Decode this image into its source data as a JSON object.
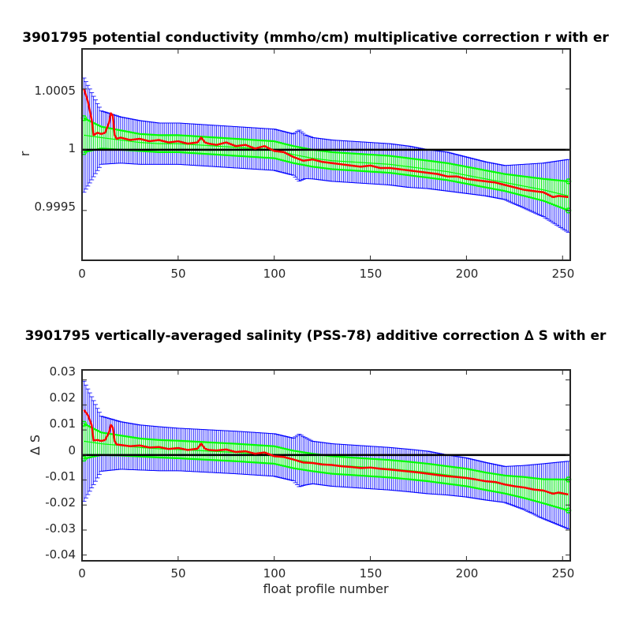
{
  "chart_data": [
    {
      "type": "line",
      "title": "3901795 potential conductivity (mmho/cm) multiplicative correction r with er",
      "xlabel": "",
      "ylabel": "r",
      "xlim": [
        0,
        254
      ],
      "ylim": [
        0.99909,
        1.00083
      ],
      "xticks": [
        0,
        50,
        100,
        150,
        200,
        250
      ],
      "xtick_labels": [
        "0",
        "50",
        "100",
        "150",
        "200",
        "250"
      ],
      "yticks": [
        0.9995,
        1,
        1.0005
      ],
      "ytick_labels": [
        "0.9995",
        "1",
        "1.0005"
      ],
      "reference_line": 1,
      "grid": false,
      "colors": {
        "fit": "#00ff00",
        "ci_outer": "#0000ff",
        "ci_inner": "#00ff00",
        "profile": "#ff0000",
        "reference": "#000000"
      },
      "series": [
        {
          "key": "fit",
          "x": [
            1,
            10,
            20,
            30,
            40,
            50,
            60,
            70,
            80,
            90,
            100,
            110,
            120,
            130,
            140,
            150,
            160,
            170,
            180,
            190,
            200,
            210,
            220,
            230,
            240,
            253
          ],
          "values": [
            1.00012,
            1.0001,
            1.00008,
            1.00006,
            1.00005,
            1.00005,
            1.00004,
            1.00003,
            1.00002,
            1.00001,
            1.0,
            0.99996,
            0.99993,
            0.99991,
            0.9999,
            0.99989,
            0.99988,
            0.99986,
            0.99984,
            0.99982,
            0.99979,
            0.99976,
            0.99973,
            0.9997,
            0.99967,
            0.99962
          ]
        },
        {
          "key": "fit_err",
          "x": [
            1,
            10,
            20,
            30,
            40,
            50,
            60,
            70,
            80,
            90,
            100,
            110,
            120,
            130,
            140,
            150,
            160,
            170,
            180,
            190,
            200,
            210,
            220,
            230,
            240,
            253
          ],
          "values": [
            0.00014,
            9e-05,
            8e-05,
            7e-05,
            7e-05,
            7e-05,
            7e-05,
            7e-05,
            7e-05,
            7e-05,
            7e-05,
            7e-05,
            7e-05,
            7e-05,
            7e-05,
            7e-05,
            7e-05,
            7e-05,
            7e-05,
            7e-05,
            7e-05,
            7e-05,
            7e-05,
            8e-05,
            9e-05,
            0.00012
          ]
        },
        {
          "key": "ci_err",
          "x": [
            1,
            10,
            20,
            30,
            40,
            50,
            60,
            70,
            80,
            90,
            100,
            110,
            113,
            116,
            120,
            130,
            140,
            150,
            160,
            170,
            180,
            190,
            200,
            210,
            220,
            230,
            240,
            253
          ],
          "values": [
            0.00047,
            0.00022,
            0.00019,
            0.00018,
            0.00017,
            0.00017,
            0.00017,
            0.00017,
            0.00017,
            0.00017,
            0.00017,
            0.00017,
            0.00021,
            0.00018,
            0.00017,
            0.00017,
            0.00017,
            0.00017,
            0.00017,
            0.00017,
            0.00016,
            0.00016,
            0.00015,
            0.00014,
            0.00014,
            0.00018,
            0.00022,
            0.0003
          ]
        },
        {
          "key": "profile",
          "x": [
            1,
            3,
            5,
            6,
            8,
            10,
            12,
            14,
            15,
            16,
            17,
            18,
            20,
            25,
            30,
            35,
            40,
            45,
            50,
            55,
            60,
            62,
            64,
            66,
            70,
            75,
            80,
            85,
            90,
            95,
            100,
            105,
            110,
            115,
            120,
            125,
            130,
            135,
            140,
            145,
            150,
            155,
            160,
            165,
            170,
            175,
            180,
            185,
            190,
            195,
            200,
            205,
            210,
            215,
            220,
            225,
            230,
            235,
            240,
            245,
            248,
            253
          ],
          "values": [
            1.0005,
            1.0004,
            1.00025,
            1.00012,
            1.00014,
            1.00013,
            1.00014,
            1.00022,
            1.0003,
            1.00028,
            1.00012,
            1.00009,
            1.0001,
            1.00008,
            1.00009,
            1.00007,
            1.00008,
            1.00006,
            1.00007,
            1.00005,
            1.00006,
            1.0001,
            1.00006,
            1.00005,
            1.00004,
            1.00006,
            1.00003,
            1.00004,
            1.00001,
            1.00003,
            0.99999,
            0.99998,
            0.99994,
            0.99991,
            0.99992,
            0.9999,
            0.99989,
            0.99988,
            0.99987,
            0.99986,
            0.99987,
            0.99985,
            0.99985,
            0.99984,
            0.99983,
            0.99982,
            0.99981,
            0.9998,
            0.99978,
            0.99978,
            0.99976,
            0.99975,
            0.99974,
            0.99973,
            0.99971,
            0.99969,
            0.99967,
            0.99966,
            0.99965,
            0.99961,
            0.99962,
            0.99961
          ]
        }
      ]
    },
    {
      "type": "line",
      "title": "3901795 vertically-averaged salinity (PSS-78) additive correction ∆ S with er",
      "xlabel": "float profile number",
      "ylabel": "∆ S",
      "xlim": [
        0,
        254
      ],
      "ylim": [
        -0.0423,
        0.034
      ],
      "xticks": [
        0,
        50,
        100,
        150,
        200,
        250
      ],
      "xtick_labels": [
        "0",
        "50",
        "100",
        "150",
        "200",
        "250"
      ],
      "yticks": [
        -0.04,
        -0.03,
        -0.02,
        -0.01,
        0,
        0.01,
        0.02,
        0.03
      ],
      "ytick_labels": [
        "-0.04",
        "-0.03",
        "-0.02",
        "-0.01",
        "0",
        "0.01",
        "0.02",
        "0.03"
      ],
      "reference_line": 0,
      "grid": false,
      "colors": {
        "fit": "#00ff00",
        "ci_outer": "#0000ff",
        "ci_inner": "#00ff00",
        "profile": "#ff0000",
        "reference": "#000000"
      },
      "series": [
        {
          "key": "fit",
          "x": [
            1,
            10,
            20,
            30,
            40,
            50,
            60,
            70,
            80,
            90,
            100,
            110,
            120,
            130,
            140,
            150,
            160,
            170,
            180,
            190,
            200,
            210,
            220,
            230,
            240,
            253
          ],
          "values": [
            0.0055,
            0.0045,
            0.0038,
            0.003,
            0.0025,
            0.0022,
            0.0018,
            0.0014,
            0.001,
            0.0005,
            0.0,
            -0.0018,
            -0.003,
            -0.004,
            -0.0045,
            -0.005,
            -0.0055,
            -0.0062,
            -0.007,
            -0.008,
            -0.009,
            -0.0105,
            -0.0118,
            -0.013,
            -0.0145,
            -0.016
          ]
        },
        {
          "key": "fit_err",
          "x": [
            1,
            10,
            20,
            30,
            40,
            50,
            60,
            70,
            80,
            90,
            100,
            110,
            120,
            130,
            140,
            150,
            160,
            170,
            180,
            190,
            200,
            210,
            220,
            230,
            240,
            253
          ],
          "values": [
            0.007,
            0.0045,
            0.004,
            0.0036,
            0.0035,
            0.0035,
            0.0035,
            0.0035,
            0.0035,
            0.0035,
            0.0035,
            0.0035,
            0.0035,
            0.0035,
            0.0035,
            0.0035,
            0.0035,
            0.0035,
            0.0035,
            0.0035,
            0.0035,
            0.0035,
            0.0036,
            0.0042,
            0.0048,
            0.0062
          ]
        },
        {
          "key": "ci_err",
          "x": [
            1,
            10,
            20,
            30,
            40,
            50,
            60,
            70,
            80,
            90,
            100,
            110,
            113,
            116,
            120,
            130,
            140,
            150,
            160,
            170,
            180,
            190,
            200,
            210,
            220,
            230,
            240,
            253
          ],
          "values": [
            0.024,
            0.011,
            0.0095,
            0.009,
            0.0088,
            0.0085,
            0.0085,
            0.0085,
            0.0085,
            0.0085,
            0.0085,
            0.0085,
            0.0105,
            0.0095,
            0.0085,
            0.0085,
            0.0085,
            0.0085,
            0.0085,
            0.0085,
            0.0085,
            0.008,
            0.0078,
            0.0075,
            0.0072,
            0.0088,
            0.011,
            0.0135
          ]
        },
        {
          "key": "profile",
          "x": [
            1,
            3,
            5,
            6,
            8,
            10,
            12,
            14,
            15,
            16,
            17,
            18,
            20,
            25,
            30,
            35,
            40,
            45,
            50,
            55,
            60,
            62,
            64,
            66,
            70,
            75,
            80,
            85,
            90,
            95,
            100,
            105,
            110,
            115,
            120,
            125,
            130,
            135,
            140,
            145,
            150,
            155,
            160,
            165,
            170,
            175,
            180,
            185,
            190,
            195,
            200,
            205,
            210,
            215,
            220,
            225,
            230,
            235,
            240,
            245,
            248,
            253
          ],
          "values": [
            0.018,
            0.016,
            0.012,
            0.0058,
            0.006,
            0.0056,
            0.006,
            0.009,
            0.012,
            0.011,
            0.0055,
            0.0042,
            0.004,
            0.0035,
            0.0038,
            0.003,
            0.0032,
            0.0024,
            0.0028,
            0.002,
            0.0025,
            0.0045,
            0.0025,
            0.002,
            0.0018,
            0.0022,
            0.0012,
            0.0015,
            0.0005,
            0.001,
            -0.0005,
            -0.0008,
            -0.0018,
            -0.003,
            -0.0032,
            -0.0038,
            -0.004,
            -0.0045,
            -0.0048,
            -0.0052,
            -0.005,
            -0.0055,
            -0.0058,
            -0.0062,
            -0.0066,
            -0.007,
            -0.0075,
            -0.008,
            -0.0085,
            -0.0088,
            -0.0092,
            -0.0098,
            -0.0105,
            -0.0108,
            -0.0118,
            -0.0125,
            -0.013,
            -0.0138,
            -0.0142,
            -0.0155,
            -0.015,
            -0.0158
          ]
        }
      ]
    }
  ]
}
